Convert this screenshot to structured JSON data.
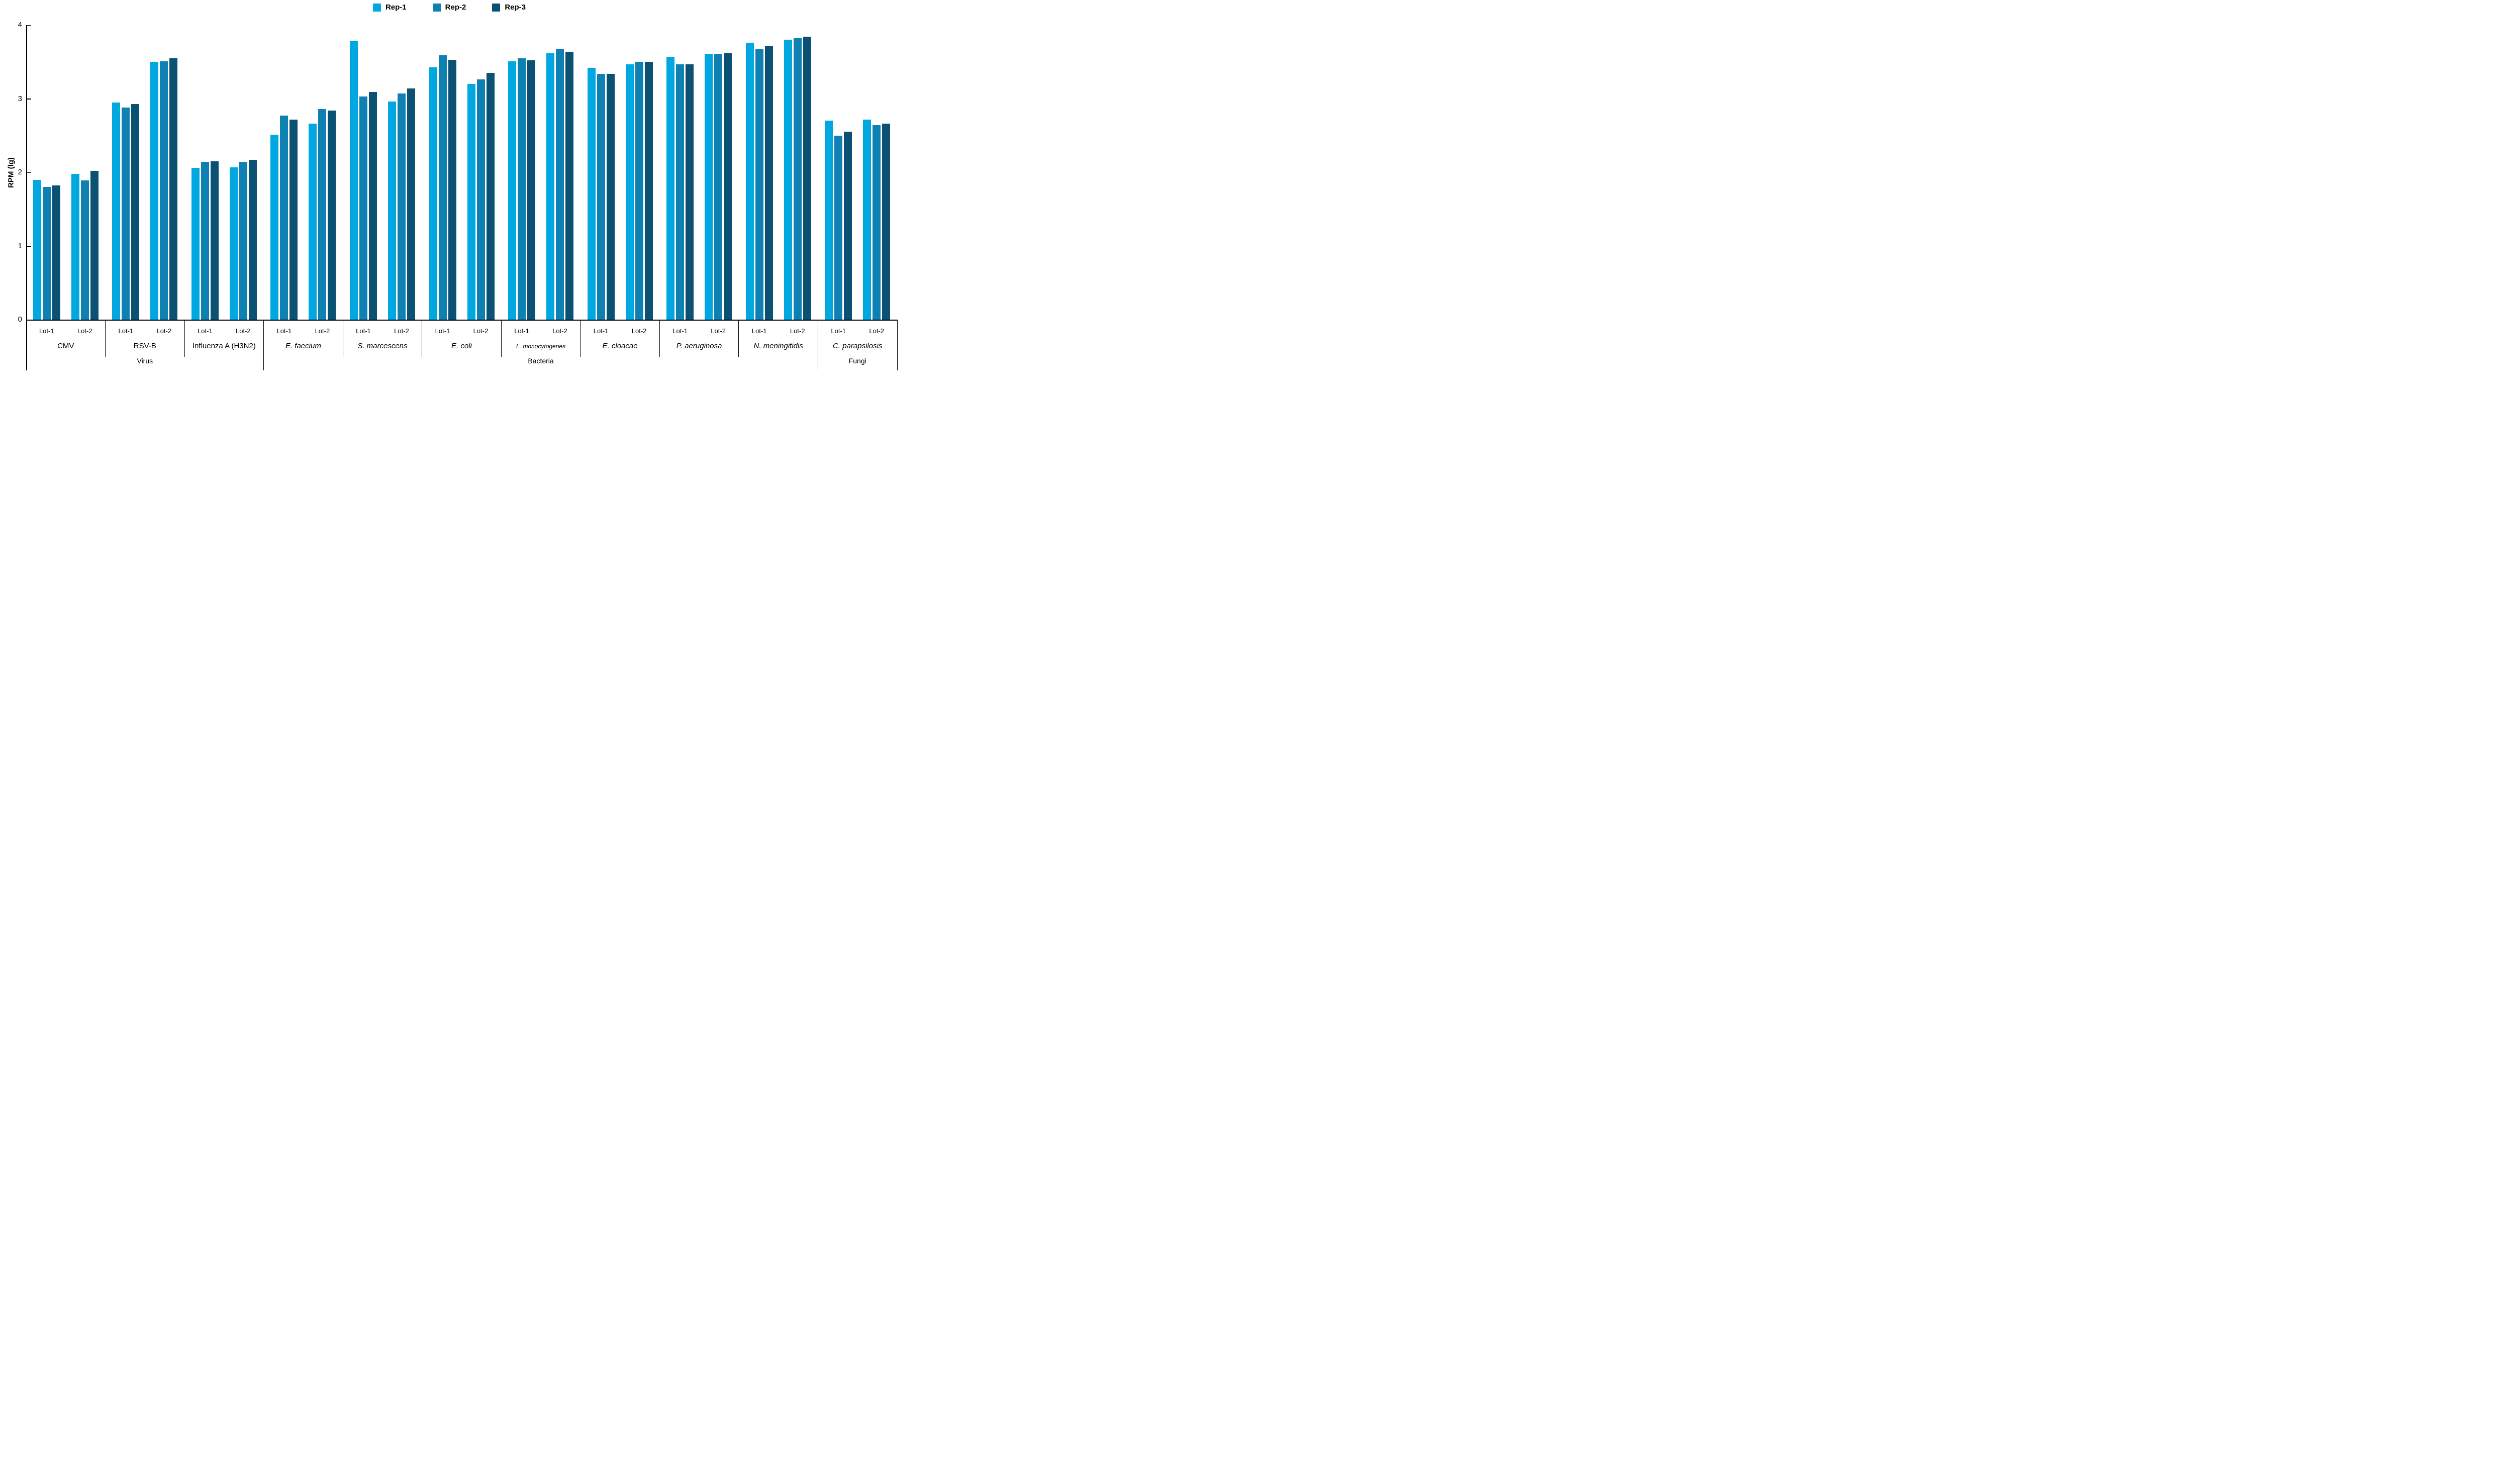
{
  "legend": [
    {
      "label": "Rep-1",
      "color": "#00A7E1"
    },
    {
      "label": "Rep-2",
      "color": "#0E81B2"
    },
    {
      "label": "Rep-3",
      "color": "#0A5174"
    }
  ],
  "chart_data": {
    "type": "bar",
    "title": "",
    "xlabel": "",
    "ylabel": "RPM (lg)",
    "ylim": [
      0,
      4
    ],
    "y_ticks": [
      0,
      1,
      2,
      3,
      4
    ],
    "grid": false,
    "legend_position": "top-center",
    "series_names": [
      "Rep-1",
      "Rep-2",
      "Rep-3"
    ],
    "series_colors": [
      "#00A7E1",
      "#0E81B2",
      "#0A5174"
    ],
    "lot_labels": [
      "Lot-1",
      "Lot-2"
    ],
    "categories": [
      {
        "name": "Virus",
        "organisms": [
          {
            "name": "CMV",
            "italic": false,
            "small": false,
            "lots": [
              {
                "label": "Lot-1",
                "values": [
                  1.9,
                  1.8,
                  1.82
                ]
              },
              {
                "label": "Lot-2",
                "values": [
                  1.98,
                  1.89,
                  2.02
                ]
              }
            ]
          },
          {
            "name": "RSV-B",
            "italic": false,
            "small": false,
            "lots": [
              {
                "label": "Lot-1",
                "values": [
                  2.95,
                  2.88,
                  2.93
                ]
              },
              {
                "label": "Lot-2",
                "values": [
                  3.5,
                  3.51,
                  3.55
                ]
              }
            ]
          },
          {
            "name": "Influenza A (H3N2)",
            "italic": false,
            "small": false,
            "lots": [
              {
                "label": "Lot-1",
                "values": [
                  2.06,
                  2.14,
                  2.15
                ]
              },
              {
                "label": "Lot-2",
                "values": [
                  2.07,
                  2.14,
                  2.17
                ]
              }
            ]
          }
        ]
      },
      {
        "name": "Bacteria",
        "organisms": [
          {
            "name": "E. faecium",
            "italic": true,
            "small": false,
            "lots": [
              {
                "label": "Lot-1",
                "values": [
                  2.51,
                  2.77,
                  2.72
                ]
              },
              {
                "label": "Lot-2",
                "values": [
                  2.66,
                  2.86,
                  2.84
                ]
              }
            ]
          },
          {
            "name": "S. marcescens",
            "italic": true,
            "small": false,
            "lots": [
              {
                "label": "Lot-1",
                "values": [
                  3.78,
                  3.03,
                  3.09
                ]
              },
              {
                "label": "Lot-2",
                "values": [
                  2.96,
                  3.07,
                  3.14
                ]
              }
            ]
          },
          {
            "name": "E. coli",
            "italic": true,
            "small": false,
            "lots": [
              {
                "label": "Lot-1",
                "values": [
                  3.43,
                  3.59,
                  3.53
                ]
              },
              {
                "label": "Lot-2",
                "values": [
                  3.2,
                  3.26,
                  3.35
                ]
              }
            ]
          },
          {
            "name": "L. monocytogenes",
            "italic": true,
            "small": true,
            "lots": [
              {
                "label": "Lot-1",
                "values": [
                  3.51,
                  3.55,
                  3.52
                ]
              },
              {
                "label": "Lot-2",
                "values": [
                  3.62,
                  3.68,
                  3.64
                ]
              }
            ]
          },
          {
            "name": "E. cloacae",
            "italic": true,
            "small": false,
            "lots": [
              {
                "label": "Lot-1",
                "values": [
                  3.42,
                  3.34,
                  3.34
                ]
              },
              {
                "label": "Lot-2",
                "values": [
                  3.47,
                  3.5,
                  3.5
                ]
              }
            ]
          },
          {
            "name": "P. aeruginosa",
            "italic": true,
            "small": false,
            "lots": [
              {
                "label": "Lot-1",
                "values": [
                  3.57,
                  3.47,
                  3.47
                ]
              },
              {
                "label": "Lot-2",
                "values": [
                  3.61,
                  3.61,
                  3.62
                ]
              }
            ]
          },
          {
            "name": "N. meningitidis",
            "italic": true,
            "small": false,
            "lots": [
              {
                "label": "Lot-1",
                "values": [
                  3.76,
                  3.68,
                  3.71
                ]
              },
              {
                "label": "Lot-2",
                "values": [
                  3.8,
                  3.82,
                  3.84
                ]
              }
            ]
          }
        ]
      },
      {
        "name": "Fungi",
        "organisms": [
          {
            "name": "C. parapsilosis",
            "italic": true,
            "small": false,
            "lots": [
              {
                "label": "Lot-1",
                "values": [
                  2.7,
                  2.5,
                  2.55
                ]
              },
              {
                "label": "Lot-2",
                "values": [
                  2.72,
                  2.64,
                  2.66
                ]
              }
            ]
          }
        ]
      }
    ]
  }
}
